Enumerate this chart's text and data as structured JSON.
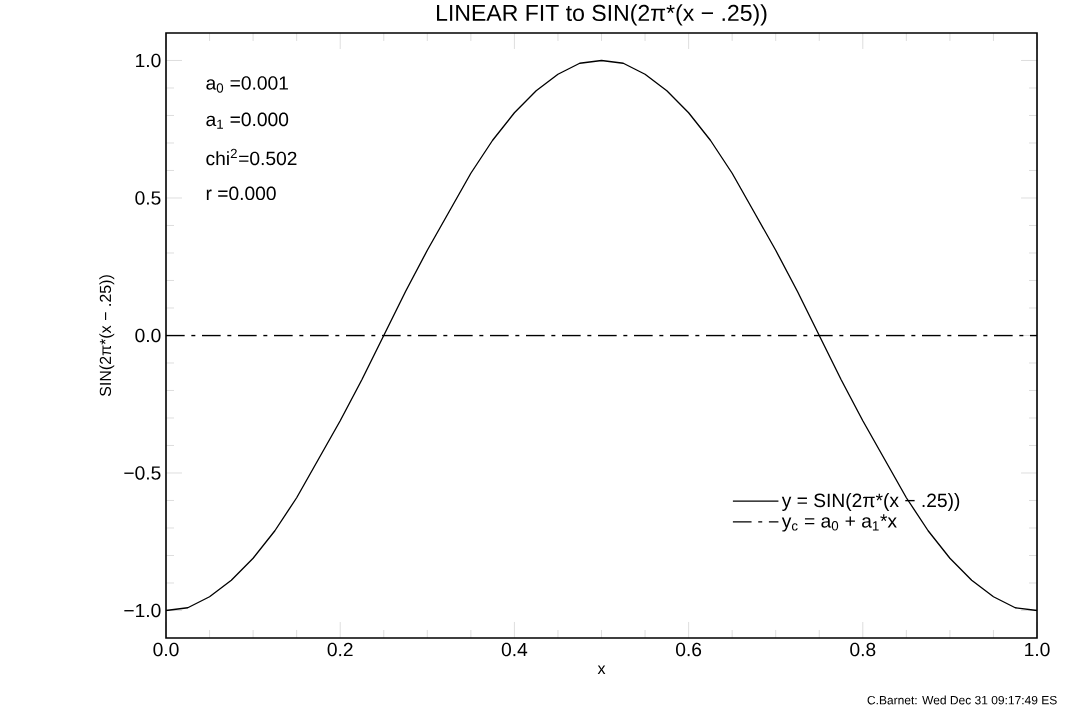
{
  "chart_data": {
    "type": "line",
    "title": "LINEAR FIT to SIN(2π*(x − .25))",
    "xlabel": "x",
    "ylabel": "SIN(2π*(x − .25))",
    "series": [
      {
        "name": "y = SIN(2π*(x − .25))",
        "color": "#000000",
        "line_style": "solid",
        "x": [
          0,
          0.025,
          0.05,
          0.075,
          0.1,
          0.125,
          0.15,
          0.175,
          0.2,
          0.225,
          0.25,
          0.275,
          0.3,
          0.325,
          0.35,
          0.375,
          0.4,
          0.425,
          0.45,
          0.475,
          0.5,
          0.525,
          0.55,
          0.575,
          0.6,
          0.625,
          0.65,
          0.675,
          0.7,
          0.725,
          0.75,
          0.775,
          0.8,
          0.825,
          0.85,
          0.875,
          0.9,
          0.925,
          0.95,
          0.975,
          1
        ],
        "values": [
          -1,
          -0.99,
          -0.95,
          -0.89,
          -0.81,
          -0.71,
          -0.59,
          -0.45,
          -0.31,
          -0.16,
          0,
          0.16,
          0.31,
          0.45,
          0.59,
          0.71,
          0.81,
          0.89,
          0.95,
          0.99,
          1,
          0.99,
          0.95,
          0.89,
          0.81,
          0.71,
          0.59,
          0.45,
          0.31,
          0.16,
          0,
          -0.16,
          -0.31,
          -0.45,
          -0.59,
          -0.71,
          -0.81,
          -0.89,
          -0.95,
          -0.99,
          -1
        ]
      },
      {
        "name": "y$_{c}$ = a$_{0}$ + a$_{1}$*x",
        "color": "#000000",
        "line_style": "dashed",
        "x": [
          0,
          1
        ],
        "values": [
          0,
          0
        ]
      }
    ],
    "xlim": [
      0,
      1
    ],
    "ylim": [
      -1.1,
      1.1
    ],
    "xticks": [
      {
        "value": 0,
        "label": "0.0"
      },
      {
        "value": 0.2,
        "label": "0.2"
      },
      {
        "value": 0.4,
        "label": "0.4"
      },
      {
        "value": 0.6,
        "label": "0.6"
      },
      {
        "value": 0.8,
        "label": "0.8"
      },
      {
        "value": 1,
        "label": "1.0"
      }
    ],
    "yticks": [
      {
        "value": -1,
        "label": "−1.0"
      },
      {
        "value": -0.5,
        "label": "−0.5"
      },
      {
        "value": 0,
        "label": "0.0"
      },
      {
        "value": 0.5,
        "label": "0.5"
      },
      {
        "value": 1,
        "label": "1.0"
      }
    ],
    "grid": false,
    "legend": "bottom right",
    "marker": "none",
    "annotations": [
      "a$_{0}$ =0.001",
      "a$_{1}$ =0.000",
      "chi$^{2}$=0.502",
      "r =0.000",
      "C.Barnet: Wed Dec 31 09:17:49 ES"
    ]
  }
}
